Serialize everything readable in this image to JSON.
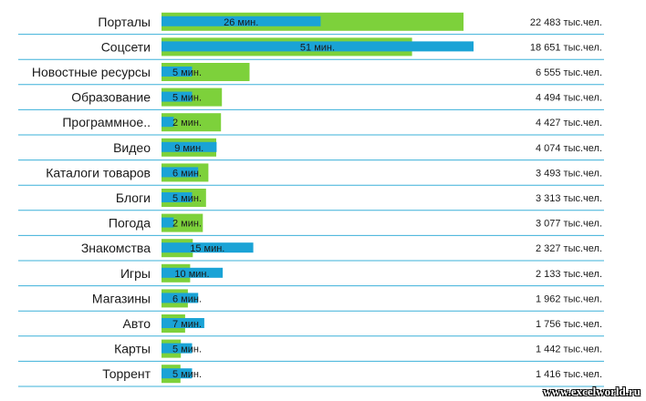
{
  "chart_data": {
    "type": "bar",
    "categories": [
      "Порталы",
      "Соцсети",
      "Новостные ресурсы",
      "Образование",
      "Программное..",
      "Видео",
      "Каталоги товаров",
      "Блоги",
      "Погода",
      "Знакомства",
      "Игры",
      "Магазины",
      "Авто",
      "Карты",
      "Торрент"
    ],
    "series": [
      {
        "values": [
          22483,
          18651,
          6555,
          4494,
          4427,
          4074,
          3493,
          3313,
          3077,
          2327,
          2133,
          1962,
          1756,
          1442,
          1416
        ],
        "labels": [
          "22 483 тыс.чел.",
          "18 651 тыс.чел.",
          "6 555 тыс.чел.",
          "4 494 тыс.чел.",
          "4 427 тыс.чел.",
          "4 074 тыс.чел.",
          "3 493 тыс.чел.",
          "3 313 тыс.чел.",
          "3 077 тыс.чел.",
          "2 327 тыс.чел.",
          "2 133 тыс.чел.",
          "1 962 тыс.чел.",
          "1 756 тыс.чел.",
          "1 442 тыс.чел.",
          "1 416 тыс.чел."
        ],
        "color": "#7dd13b"
      },
      {
        "values": [
          26,
          51,
          5,
          5,
          2,
          9,
          6,
          5,
          2,
          15,
          10,
          6,
          7,
          5,
          5
        ],
        "labels": [
          "26 мин.",
          "51 мин.",
          "5 мин.",
          "5 мин.",
          "2 мин.",
          "9 мин.",
          "6 мин.",
          "5 мин.",
          "2 мин.",
          "15 мин.",
          "10 мин.",
          "6 мин.",
          "7 мин.",
          "5 мин.",
          "5 мин."
        ],
        "color": "#1aa3d6"
      }
    ],
    "separator_color": "#3bb0d9",
    "watermark": "www.excelworld.ru"
  }
}
